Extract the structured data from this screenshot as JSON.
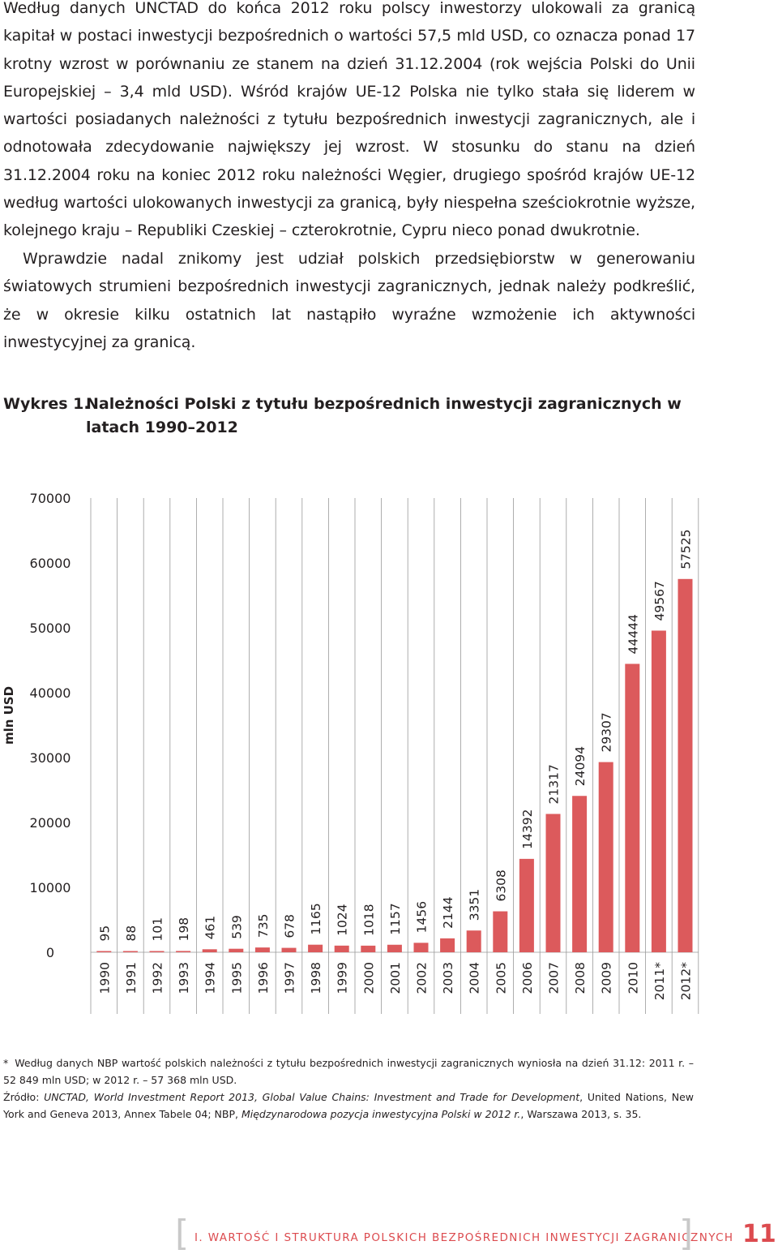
{
  "body": {
    "paragraph1": "Według danych UNCTAD do końca 2012 roku polscy inwestorzy ulokowali za granicą kapitał w postaci inwestycji bezpośrednich o wartości 57,5 mld USD, co oznacza ponad 17 krotny wzrost w porównaniu ze stanem na dzień 31.12.2004 (rok wejścia Polski do Unii Europejskiej – 3,4 mld USD). Wśród krajów UE-12 Polska nie tylko stała się liderem w wartości posiadanych należności z tytułu bezpośrednich inwestycji zagranicznych, ale i odnotowała zdecydowanie największy jej wzrost. W stosunku do stanu na dzień 31.12.2004 roku na koniec 2012 roku należności Węgier, drugiego spośród krajów UE-12 według wartości ulokowanych inwestycji za granicą, były niespełna sześciokrotnie wyższe, kolejnego kraju – Republiki Czeskiej – czterokrotnie, Cypru nieco ponad dwukrotnie.",
    "paragraph2": "Wprawdzie nadal znikomy jest udział polskich przedsiębiorstw w generowaniu światowych strumieni bezpośrednich inwestycji zagranicznych, jednak należy podkreślić, że w okresie kilku ostatnich lat nastąpiło wyraźne wzmożenie ich aktywności inwestycyjnej za granicą."
  },
  "figure": {
    "number": "Wykres 1.",
    "title": "Należności Polski z tytułu bezpośrednich inwestycji zagranicznych w latach 1990–2012"
  },
  "chart_data": {
    "type": "bar",
    "title": "Należności Polski z tytułu bezpośrednich inwestycji zagranicznych w latach 1990–2012",
    "ylabel": "mln USD",
    "xlabel": "",
    "ylim": [
      0,
      70000
    ],
    "yticks": [
      "0",
      "10000",
      "20000",
      "30000",
      "40000",
      "50000",
      "60000",
      "70000"
    ],
    "categories": [
      "1990",
      "1991",
      "1992",
      "1993",
      "1994",
      "1995",
      "1996",
      "1997",
      "1998",
      "1999",
      "2000",
      "2001",
      "2002",
      "2003",
      "2004",
      "2005",
      "2006",
      "2007",
      "2008",
      "2009",
      "2010",
      "2011*",
      "2012*"
    ],
    "values": [
      95,
      88,
      101,
      198,
      461,
      539,
      735,
      678,
      1165,
      1024,
      1018,
      1157,
      1456,
      2144,
      3351,
      6308,
      14392,
      21317,
      24094,
      29307,
      44444,
      49567,
      57525
    ],
    "value_labels": [
      "95",
      "88",
      "101",
      "198",
      "461",
      "539",
      "735",
      "678",
      "1165",
      "1024",
      "1018",
      "1157",
      "1456",
      "2144",
      "3351",
      "6308",
      "14392",
      "21317",
      "24094",
      "29307",
      "44444",
      "49567",
      "57525"
    ],
    "grid": false,
    "legend": "none",
    "bar_color": "#dc5a5c",
    "axis_color": "#999999"
  },
  "footnotes": {
    "star": "*",
    "note": "Według danych NBP wartość polskich należności z tytułu bezpośrednich inwestycji zagranicznych wyniosła na dzień 31.12: 2011 r. – 52 849 mln USD; w 2012 r. – 57 368 mln USD.",
    "source_prefix": "Źródło: ",
    "source_ref1": "UNCTAD, World Investment Report 2013, Global Value Chains: Investment and Trade for Development",
    "source_mid": ", United Nations, New York and Geneva 2013, Annex Tabele 04; NBP, ",
    "source_ref2": "Międzynarodowa pozycja inwestycyjna Polski w 2012 r.",
    "source_end": ", Warszawa 2013, s. 35."
  },
  "footer": {
    "bracket_left": "[",
    "section": "I. WARTOŚĆ I STRUKTURA POLSKICH BEZPOŚREDNICH INWESTYCJI ZAGRANICZNYCH",
    "bracket_right": "]",
    "page_number": "11",
    "accent_color": "#dc4b4f"
  }
}
